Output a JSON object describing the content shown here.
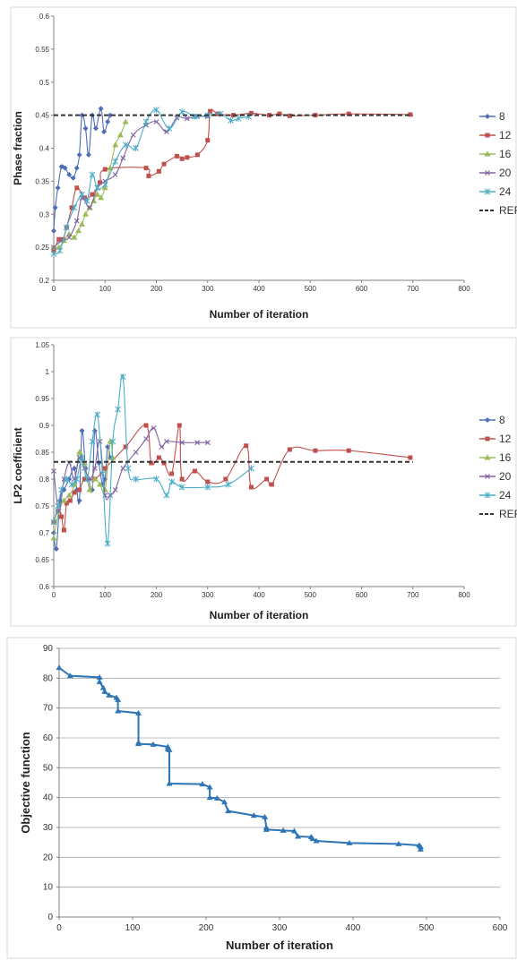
{
  "chart_data": [
    {
      "type": "line",
      "ylabel": "Phase fraction",
      "xlabel": "Number of iteration",
      "xlim": [
        0,
        800
      ],
      "ylim": [
        0.2,
        0.6
      ],
      "x_ticks": [
        "0",
        "100",
        "200",
        "300",
        "400",
        "500",
        "600",
        "700",
        "800"
      ],
      "y_ticks": [
        "0.2",
        "0.25",
        "0.3",
        "0.35",
        "0.4",
        "0.45",
        "0.5",
        "0.55",
        "0.6"
      ],
      "grid": false,
      "legend_position": "right",
      "series": [
        {
          "name": "8",
          "color": "#4f6db8",
          "marker": "diamond",
          "x": [
            0,
            3,
            8,
            15,
            22,
            30,
            38,
            45,
            50,
            55,
            62,
            68,
            75,
            82,
            92,
            98,
            105,
            110
          ],
          "y": [
            0.275,
            0.31,
            0.34,
            0.372,
            0.37,
            0.36,
            0.355,
            0.37,
            0.39,
            0.45,
            0.43,
            0.39,
            0.45,
            0.43,
            0.46,
            0.425,
            0.44,
            0.45
          ]
        },
        {
          "name": "12",
          "color": "#c0504d",
          "marker": "square",
          "x": [
            0,
            10,
            18,
            25,
            35,
            45,
            60,
            75,
            90,
            100,
            180,
            185,
            205,
            215,
            240,
            250,
            260,
            280,
            300,
            305,
            320,
            350,
            385,
            420,
            440,
            460,
            510,
            575,
            695
          ],
          "y": [
            0.245,
            0.262,
            0.262,
            0.28,
            0.31,
            0.34,
            0.325,
            0.33,
            0.348,
            0.368,
            0.37,
            0.358,
            0.365,
            0.376,
            0.388,
            0.384,
            0.386,
            0.39,
            0.412,
            0.456,
            0.452,
            0.45,
            0.453,
            0.45,
            0.452,
            0.449,
            0.45,
            0.452,
            0.451
          ]
        },
        {
          "name": "16",
          "color": "#9bbb59",
          "marker": "triangle",
          "x": [
            0,
            10,
            20,
            30,
            40,
            48,
            55,
            62,
            70,
            78,
            85,
            92,
            100,
            110,
            120,
            130,
            140
          ],
          "y": [
            0.25,
            0.25,
            0.26,
            0.27,
            0.265,
            0.275,
            0.285,
            0.3,
            0.31,
            0.32,
            0.33,
            0.325,
            0.34,
            0.37,
            0.405,
            0.42,
            0.44
          ]
        },
        {
          "name": "20",
          "color": "#8064a2",
          "marker": "x",
          "x": [
            0,
            15,
            30,
            45,
            55,
            70,
            85,
            100,
            120,
            135,
            155,
            180,
            200,
            220,
            240,
            260,
            280,
            300
          ],
          "y": [
            0.25,
            0.26,
            0.265,
            0.29,
            0.325,
            0.31,
            0.34,
            0.35,
            0.36,
            0.385,
            0.42,
            0.435,
            0.44,
            0.425,
            0.446,
            0.445,
            0.448,
            0.448
          ]
        },
        {
          "name": "24",
          "color": "#4bacc6",
          "marker": "star",
          "x": [
            0,
            12,
            25,
            40,
            55,
            65,
            75,
            85,
            100,
            120,
            140,
            160,
            180,
            200,
            225,
            250,
            275,
            300,
            325,
            345,
            360,
            380
          ],
          "y": [
            0.24,
            0.245,
            0.28,
            0.31,
            0.33,
            0.32,
            0.36,
            0.34,
            0.345,
            0.38,
            0.405,
            0.4,
            0.44,
            0.458,
            0.43,
            0.455,
            0.448,
            0.45,
            0.452,
            0.442,
            0.445,
            0.448
          ]
        },
        {
          "name": "REF",
          "color": "#333333",
          "dashed": true,
          "x": [
            0,
            700
          ],
          "y": [
            0.45,
            0.45
          ]
        }
      ]
    },
    {
      "type": "line",
      "ylabel": "LP2 coefficient",
      "xlabel": "Number of iteration",
      "xlim": [
        0,
        800
      ],
      "ylim": [
        0.6,
        1.05
      ],
      "x_ticks": [
        "0",
        "100",
        "200",
        "300",
        "400",
        "500",
        "600",
        "700",
        "800"
      ],
      "y_ticks": [
        "0.6",
        "0.65",
        "0.7",
        "0.75",
        "0.8",
        "0.85",
        "0.9",
        "0.95",
        "1",
        "1.05"
      ],
      "grid": false,
      "legend_position": "right",
      "series": [
        {
          "name": "8",
          "color": "#4f6db8",
          "marker": "diamond",
          "x": [
            0,
            5,
            12,
            20,
            30,
            40,
            45,
            50,
            55,
            62,
            68,
            75,
            80,
            88,
            95,
            100,
            105,
            110
          ],
          "y": [
            0.7,
            0.67,
            0.76,
            0.78,
            0.8,
            0.82,
            0.78,
            0.76,
            0.89,
            0.82,
            0.8,
            0.78,
            0.89,
            0.83,
            0.79,
            0.8,
            0.86,
            0.84
          ]
        },
        {
          "name": "12",
          "color": "#c0504d",
          "marker": "square",
          "x": [
            0,
            8,
            15,
            20,
            25,
            32,
            40,
            50,
            60,
            80,
            100,
            140,
            180,
            190,
            205,
            215,
            230,
            245,
            250,
            275,
            300,
            335,
            375,
            385,
            415,
            425,
            460,
            510,
            575,
            695
          ],
          "y": [
            0.72,
            0.74,
            0.73,
            0.705,
            0.755,
            0.76,
            0.775,
            0.78,
            0.8,
            0.8,
            0.82,
            0.86,
            0.9,
            0.83,
            0.84,
            0.83,
            0.81,
            0.9,
            0.8,
            0.815,
            0.795,
            0.8,
            0.862,
            0.785,
            0.8,
            0.79,
            0.855,
            0.853,
            0.853,
            0.84
          ]
        },
        {
          "name": "16",
          "color": "#9bbb59",
          "marker": "triangle",
          "x": [
            0,
            10,
            20,
            30,
            40,
            50,
            60,
            70,
            80,
            90,
            100,
            110,
            115
          ],
          "y": [
            0.69,
            0.74,
            0.76,
            0.77,
            0.79,
            0.85,
            0.83,
            0.78,
            0.8,
            0.79,
            0.78,
            0.87,
            0.84
          ]
        },
        {
          "name": "20",
          "color": "#8064a2",
          "marker": "x",
          "x": [
            0,
            10,
            20,
            30,
            40,
            50,
            60,
            70,
            80,
            90,
            100,
            110,
            120,
            135,
            160,
            180,
            195,
            210,
            220,
            250,
            280,
            300
          ],
          "y": [
            0.815,
            0.74,
            0.8,
            0.83,
            0.8,
            0.84,
            0.82,
            0.8,
            0.82,
            0.87,
            0.77,
            0.77,
            0.78,
            0.82,
            0.85,
            0.875,
            0.895,
            0.86,
            0.87,
            0.868,
            0.868,
            0.868
          ]
        },
        {
          "name": "24",
          "color": "#4bacc6",
          "marker": "star",
          "x": [
            0,
            8,
            15,
            25,
            35,
            45,
            55,
            65,
            75,
            85,
            95,
            105,
            115,
            125,
            135,
            145,
            160,
            200,
            220,
            230,
            250,
            300,
            340,
            385
          ],
          "y": [
            0.72,
            0.75,
            0.78,
            0.8,
            0.79,
            0.8,
            0.84,
            0.8,
            0.87,
            0.92,
            0.81,
            0.68,
            0.87,
            0.93,
            0.99,
            0.82,
            0.8,
            0.8,
            0.77,
            0.795,
            0.785,
            0.785,
            0.79,
            0.82
          ]
        },
        {
          "name": "REF",
          "color": "#333333",
          "dashed": true,
          "x": [
            0,
            700
          ],
          "y": [
            0.832,
            0.832
          ]
        }
      ]
    },
    {
      "type": "line",
      "ylabel": "Objective function",
      "xlabel": "Number of iteration",
      "xlim": [
        0,
        600
      ],
      "ylim": [
        0,
        90
      ],
      "x_ticks": [
        "0",
        "100",
        "200",
        "300",
        "400",
        "500",
        "600"
      ],
      "y_ticks": [
        "0",
        "10",
        "20",
        "30",
        "40",
        "50",
        "60",
        "70",
        "80",
        "90"
      ],
      "grid": true,
      "series": [
        {
          "name": "",
          "color": "#2e75b6",
          "marker": "triangle",
          "x": [
            0,
            15,
            55,
            55,
            60,
            62,
            68,
            78,
            80,
            80,
            108,
            108,
            108,
            128,
            148,
            148,
            150,
            150,
            195,
            205,
            205,
            215,
            225,
            230,
            265,
            280,
            282,
            282,
            305,
            320,
            325,
            343,
            345,
            350,
            395,
            462,
            490,
            492,
            492
          ],
          "y": [
            83.5,
            80.8,
            80.3,
            78.8,
            76.8,
            75.5,
            74.3,
            73.5,
            72.8,
            69,
            68.3,
            58.5,
            58,
            57.8,
            57,
            56.3,
            56,
            44.7,
            44.5,
            43.5,
            40,
            39.8,
            38.5,
            35.5,
            34,
            33.5,
            30,
            29.3,
            29,
            28.8,
            27,
            26.8,
            26.2,
            25.5,
            24.8,
            24.5,
            24,
            23.5,
            22.7
          ]
        }
      ]
    }
  ]
}
